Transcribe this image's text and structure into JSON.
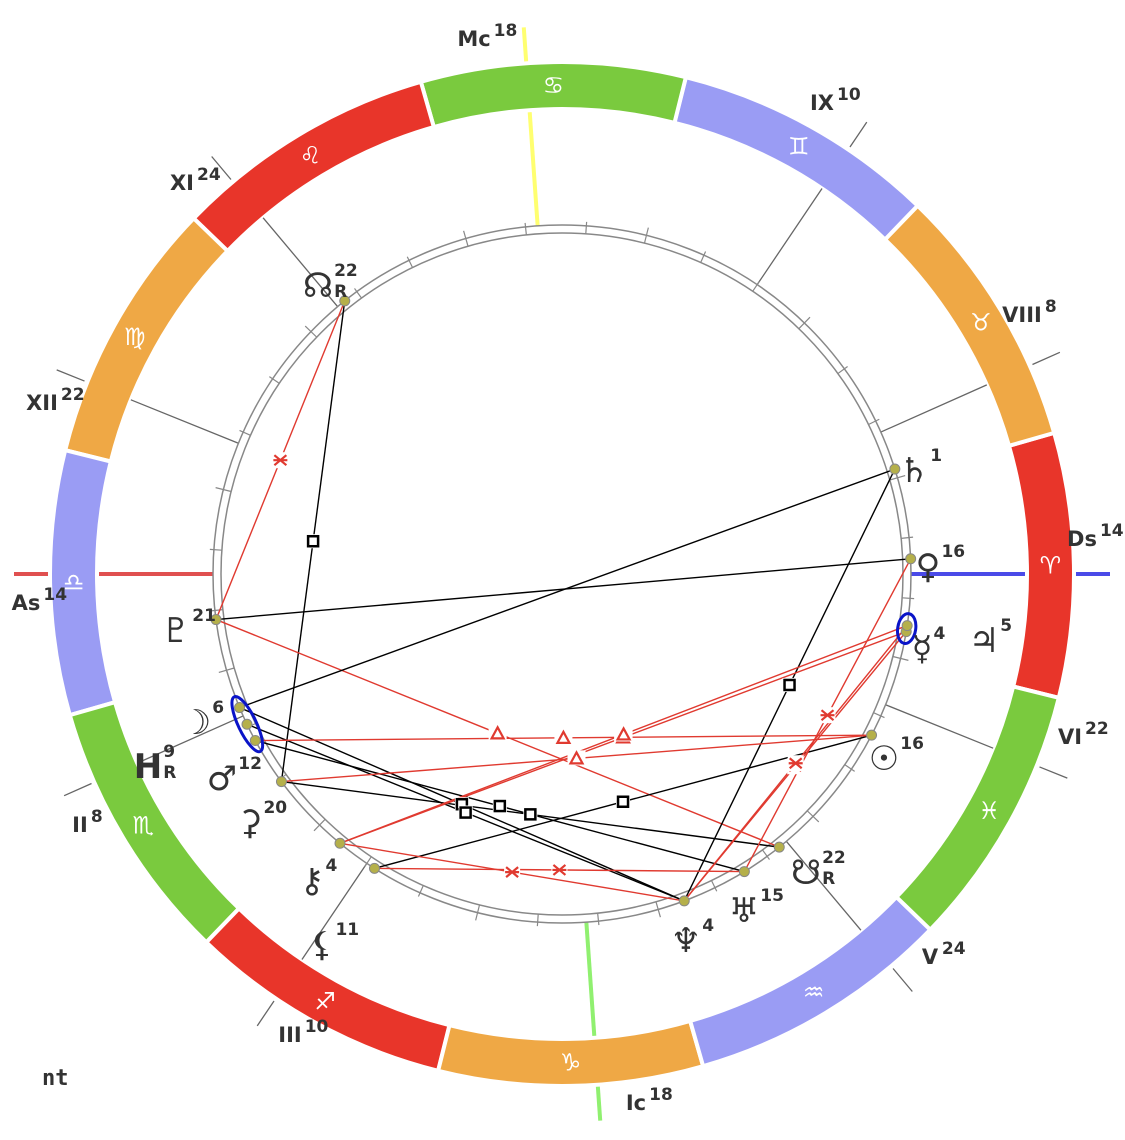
{
  "chart_name": "nt",
  "ascendant": {
    "sign": "Libra",
    "degree": 14
  },
  "colors": {
    "fire": "#e8352a",
    "earth": "#efa845",
    "air": "#9a9cf4",
    "water": "#7aca3e",
    "asc_line": "#e05050",
    "ds_line": "#4a4ae8",
    "mc_line": "#ffff70",
    "ic_line": "#90f070",
    "conjunction": "#0a14c8",
    "harmonious": "#e03a30",
    "tense": "#000000",
    "planet_dot": "#b5b04a"
  },
  "signs": [
    {
      "name": "Aries",
      "glyph": "♈",
      "element": "fire"
    },
    {
      "name": "Taurus",
      "glyph": "♉",
      "element": "earth"
    },
    {
      "name": "Gemini",
      "glyph": "♊",
      "element": "air"
    },
    {
      "name": "Cancer",
      "glyph": "♋",
      "element": "water"
    },
    {
      "name": "Leo",
      "glyph": "♌",
      "element": "fire"
    },
    {
      "name": "Virgo",
      "glyph": "♍",
      "element": "earth"
    },
    {
      "name": "Libra",
      "glyph": "♎",
      "element": "air"
    },
    {
      "name": "Scorpio",
      "glyph": "♏",
      "element": "water"
    },
    {
      "name": "Sagittarius",
      "glyph": "♐",
      "element": "fire"
    },
    {
      "name": "Capricorn",
      "glyph": "♑",
      "element": "earth"
    },
    {
      "name": "Aquarius",
      "glyph": "♒",
      "element": "air"
    },
    {
      "name": "Pisces",
      "glyph": "♓",
      "element": "water"
    }
  ],
  "houses": [
    {
      "label": "As",
      "degree": "14",
      "sign": 6,
      "deg": 14,
      "kind": "asc"
    },
    {
      "label": "II",
      "degree": "8",
      "sign": 7,
      "deg": 8
    },
    {
      "label": "III",
      "degree": "10",
      "sign": 8,
      "deg": 10
    },
    {
      "label": "Ic",
      "degree": "18",
      "sign": 9,
      "deg": 18,
      "kind": "ic"
    },
    {
      "label": "V",
      "degree": "24",
      "sign": 10,
      "deg": 24
    },
    {
      "label": "VI",
      "degree": "22",
      "sign": 11,
      "deg": 22
    },
    {
      "label": "Ds",
      "degree": "14",
      "sign": 0,
      "deg": 14,
      "kind": "ds"
    },
    {
      "label": "VIII",
      "degree": "8",
      "sign": 1,
      "deg": 8
    },
    {
      "label": "IX",
      "degree": "10",
      "sign": 2,
      "deg": 10
    },
    {
      "label": "Mc",
      "degree": "18",
      "sign": 3,
      "deg": 18,
      "kind": "mc"
    },
    {
      "label": "XI",
      "degree": "24",
      "sign": 4,
      "deg": 24
    },
    {
      "label": "XII",
      "degree": "22",
      "sign": 5,
      "deg": 22
    }
  ],
  "planets": [
    {
      "id": "north-node",
      "glyph": "☊",
      "degree": "22",
      "retro": "R",
      "sign": 4,
      "deg": 22
    },
    {
      "id": "pluto",
      "glyph": "♇",
      "degree": "21",
      "retro": "",
      "sign": 6,
      "deg": 21
    },
    {
      "id": "moon",
      "glyph": "☽",
      "degree": "6",
      "retro": "",
      "sign": 7,
      "deg": 6
    },
    {
      "id": "h-point",
      "glyph": "H",
      "degree": "9",
      "retro": "R",
      "sign": 7,
      "deg": 9
    },
    {
      "id": "mars",
      "glyph": "♂",
      "degree": "12",
      "retro": "",
      "sign": 7,
      "deg": 12
    },
    {
      "id": "ceres",
      "glyph": "⚳",
      "degree": "20",
      "retro": "",
      "sign": 7,
      "deg": 20
    },
    {
      "id": "chiron",
      "glyph": "⚷",
      "degree": "4",
      "retro": "",
      "sign": 8,
      "deg": 4
    },
    {
      "id": "lilith",
      "glyph": "⚸",
      "degree": "11",
      "retro": "",
      "sign": 8,
      "deg": 11
    },
    {
      "id": "neptune",
      "glyph": "♆",
      "degree": "4",
      "retro": "",
      "sign": 10,
      "deg": 4
    },
    {
      "id": "uranus",
      "glyph": "♅",
      "degree": "15",
      "retro": "",
      "sign": 10,
      "deg": 15
    },
    {
      "id": "south-node",
      "glyph": "☋",
      "degree": "22",
      "retro": "R",
      "sign": 10,
      "deg": 22
    },
    {
      "id": "sun",
      "glyph": "☉",
      "degree": "16",
      "retro": "",
      "sign": 11,
      "deg": 16
    },
    {
      "id": "mercury",
      "glyph": "☿",
      "degree": "4",
      "retro": "",
      "sign": 0,
      "deg": 4
    },
    {
      "id": "jupiter",
      "glyph": "♃",
      "degree": "5",
      "retro": "",
      "sign": 0,
      "deg": 5
    },
    {
      "id": "venus",
      "glyph": "♀",
      "degree": "16",
      "retro": "",
      "sign": 0,
      "deg": 16
    },
    {
      "id": "saturn",
      "glyph": "♄",
      "degree": "1",
      "retro": "",
      "sign": 1,
      "deg": 1
    }
  ],
  "aspects": [
    {
      "from": "north-node",
      "to": "ceres",
      "type": "square"
    },
    {
      "from": "north-node",
      "to": "pluto",
      "type": "sextile"
    },
    {
      "from": "pluto",
      "to": "venus",
      "type": "opposition"
    },
    {
      "from": "pluto",
      "to": "south-node",
      "type": "trine"
    },
    {
      "from": "moon",
      "to": "saturn",
      "type": "opposition"
    },
    {
      "from": "moon",
      "to": "neptune",
      "type": "square"
    },
    {
      "from": "h-point",
      "to": "neptune",
      "type": "square"
    },
    {
      "from": "mars",
      "to": "uranus",
      "type": "square"
    },
    {
      "from": "ceres",
      "to": "south-node",
      "type": "square"
    },
    {
      "from": "saturn",
      "to": "neptune",
      "type": "square"
    },
    {
      "from": "sun",
      "to": "lilith",
      "type": "square"
    },
    {
      "from": "sun",
      "to": "mars",
      "type": "trine"
    },
    {
      "from": "sun",
      "to": "ceres",
      "type": "trine"
    },
    {
      "from": "mercury",
      "to": "chiron",
      "type": "trine"
    },
    {
      "from": "jupiter",
      "to": "chiron",
      "type": "trine"
    },
    {
      "from": "mercury",
      "to": "neptune",
      "type": "sextile"
    },
    {
      "from": "jupiter",
      "to": "neptune",
      "type": "sextile"
    },
    {
      "from": "venus",
      "to": "uranus",
      "type": "sextile"
    },
    {
      "from": "chiron",
      "to": "neptune",
      "type": "sextile"
    },
    {
      "from": "lilith",
      "to": "uranus",
      "type": "sextile"
    }
  ],
  "conjunctions": [
    [
      "moon",
      "h-point",
      "mars"
    ],
    [
      "mercury",
      "jupiter"
    ]
  ]
}
